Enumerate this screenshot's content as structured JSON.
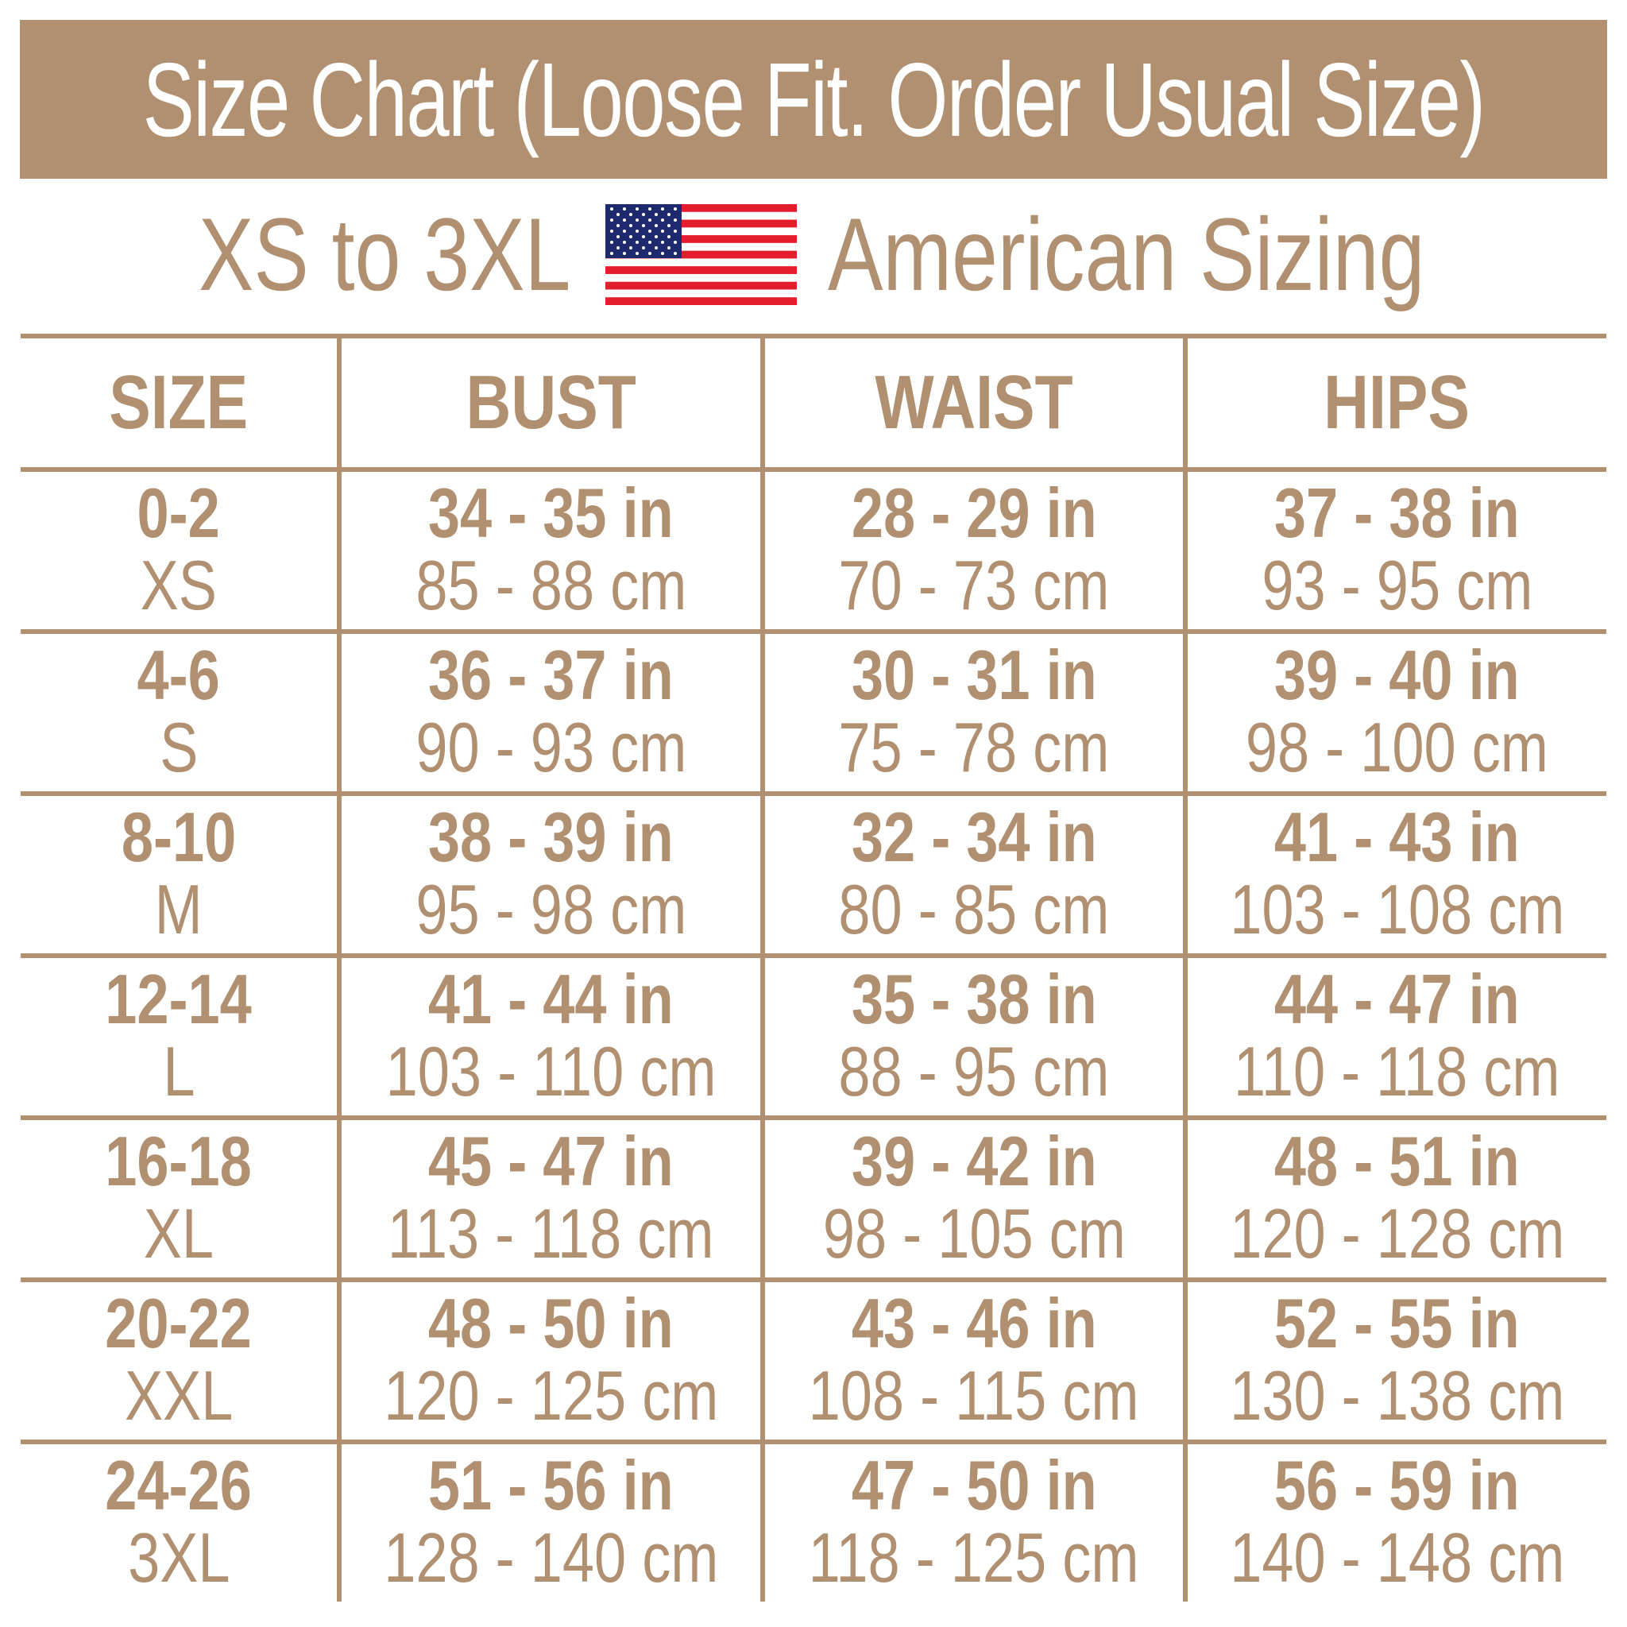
{
  "title": "Size Chart (Loose Fit. Order Usual Size)",
  "subtitle": {
    "left": "XS to 3XL",
    "right": "American Sizing",
    "flag_icon": "us-flag-icon"
  },
  "colors": {
    "accent": "#b09070",
    "flag_red": "#e31d2b",
    "flag_blue": "#1e2a6e"
  },
  "headers": [
    "SIZE",
    "BUST",
    "WAIST",
    "HIPS"
  ],
  "rows": [
    {
      "size": "0-2",
      "letter": "XS",
      "bust_in": "34 - 35 in",
      "bust_cm": "85 - 88 cm",
      "waist_in": "28 - 29 in",
      "waist_cm": "70 - 73 cm",
      "hips_in": "37 - 38 in",
      "hips_cm": "93 - 95 cm"
    },
    {
      "size": "4-6",
      "letter": "S",
      "bust_in": "36 - 37 in",
      "bust_cm": "90 - 93 cm",
      "waist_in": "30 - 31 in",
      "waist_cm": "75 - 78 cm",
      "hips_in": "39 - 40 in",
      "hips_cm": "98 - 100 cm"
    },
    {
      "size": "8-10",
      "letter": "M",
      "bust_in": "38 - 39 in",
      "bust_cm": "95 - 98 cm",
      "waist_in": "32 - 34 in",
      "waist_cm": "80 - 85 cm",
      "hips_in": "41 - 43 in",
      "hips_cm": "103 - 108 cm"
    },
    {
      "size": "12-14",
      "letter": "L",
      "bust_in": "41 - 44 in",
      "bust_cm": "103 - 110 cm",
      "waist_in": "35 - 38 in",
      "waist_cm": "88 - 95 cm",
      "hips_in": "44 - 47 in",
      "hips_cm": "110 - 118 cm"
    },
    {
      "size": "16-18",
      "letter": "XL",
      "bust_in": "45 - 47 in",
      "bust_cm": "113 - 118 cm",
      "waist_in": "39 - 42 in",
      "waist_cm": "98 - 105 cm",
      "hips_in": "48 - 51 in",
      "hips_cm": "120 - 128 cm"
    },
    {
      "size": "20-22",
      "letter": "XXL",
      "bust_in": "48 - 50 in",
      "bust_cm": "120 - 125 cm",
      "waist_in": "43 - 46 in",
      "waist_cm": "108 - 115 cm",
      "hips_in": "52 - 55 in",
      "hips_cm": "130 - 138 cm"
    },
    {
      "size": "24-26",
      "letter": "3XL",
      "bust_in": "51 - 56 in",
      "bust_cm": "128 - 140 cm",
      "waist_in": "47 - 50 in",
      "waist_cm": "118 - 125 cm",
      "hips_in": "56 - 59 in",
      "hips_cm": "140 - 148 cm"
    }
  ]
}
